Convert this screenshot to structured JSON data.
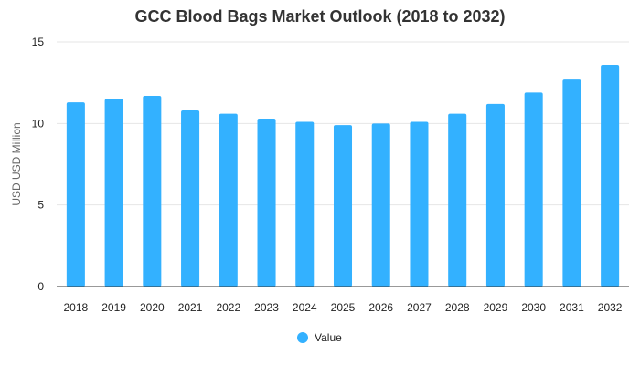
{
  "chart_data": {
    "type": "bar",
    "title": "GCC Blood Bags Market Outlook (2018 to 2032)",
    "xlabel": "",
    "ylabel": "USD USD Million",
    "categories": [
      "2018",
      "2019",
      "2020",
      "2021",
      "2022",
      "2023",
      "2024",
      "2025",
      "2026",
      "2027",
      "2028",
      "2029",
      "2030",
      "2031",
      "2032"
    ],
    "series": [
      {
        "name": "Value",
        "color": "#33b1ff",
        "values": [
          11.3,
          11.5,
          11.7,
          10.8,
          10.6,
          10.3,
          10.1,
          9.9,
          10.0,
          10.1,
          10.6,
          11.2,
          11.9,
          12.7,
          13.6
        ]
      }
    ],
    "ylim": [
      0,
      15
    ],
    "yticks": [
      0,
      5,
      10,
      15
    ],
    "grid": true,
    "legend": "bottom"
  }
}
